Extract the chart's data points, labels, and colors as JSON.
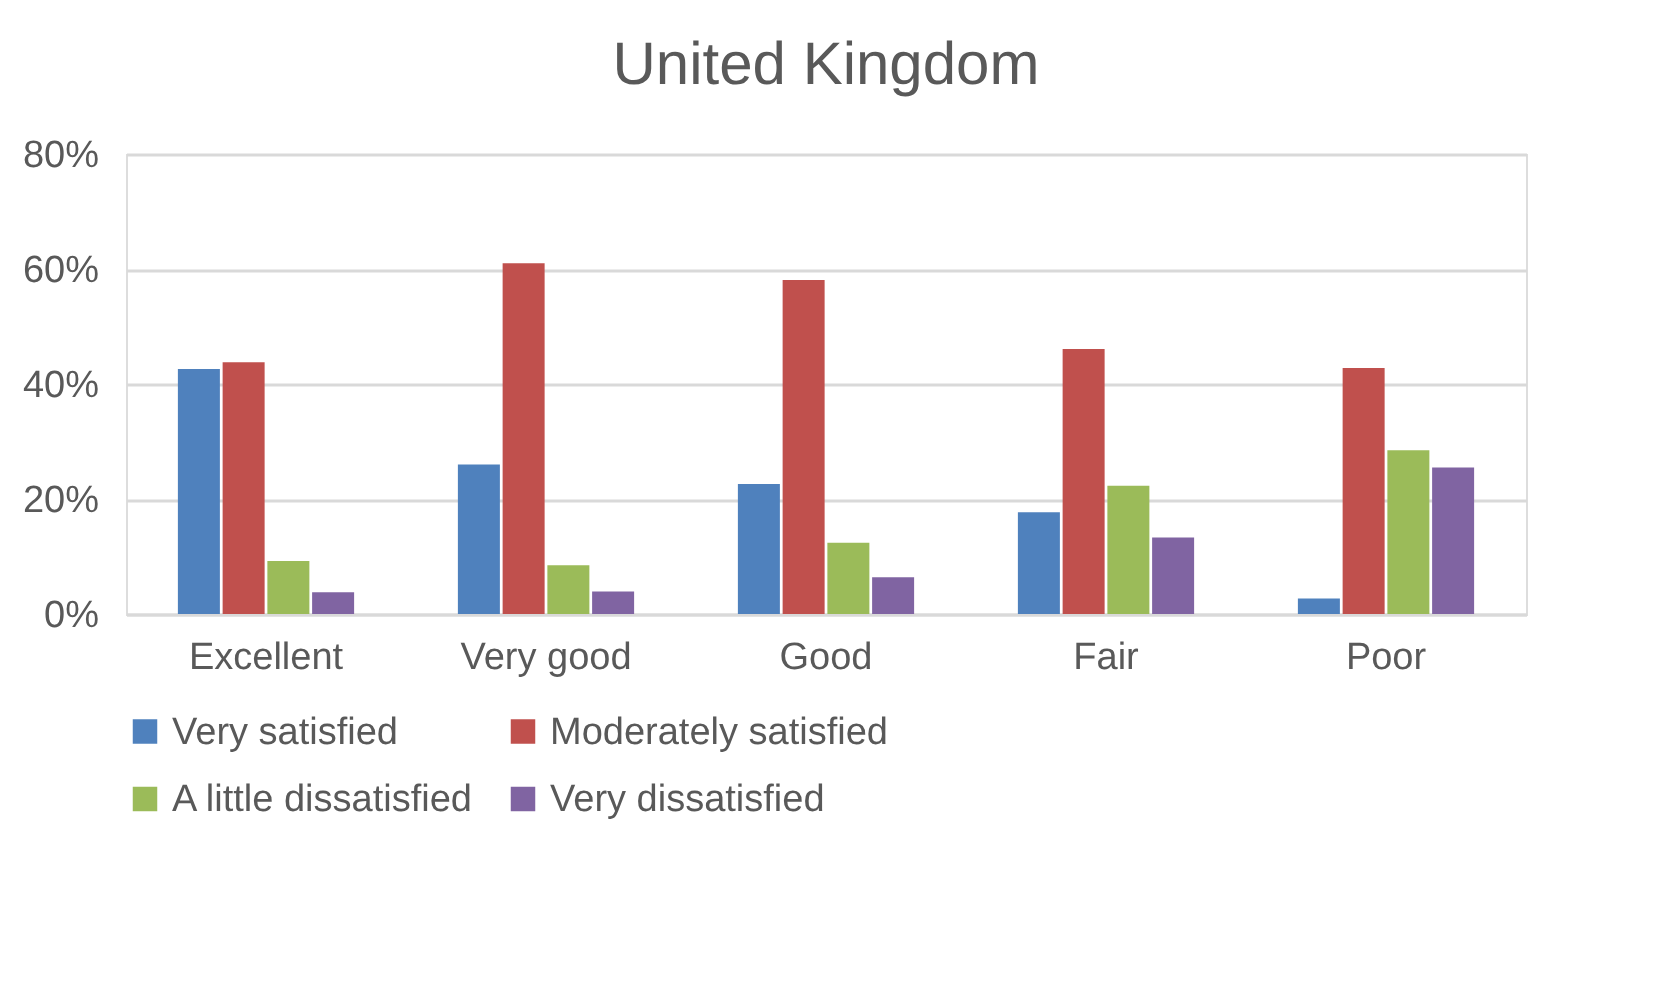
{
  "chart_data": {
    "type": "bar",
    "title": "United Kingdom",
    "categories": [
      "Excellent",
      "Very good",
      "Good",
      "Fair",
      "Poor"
    ],
    "series": [
      {
        "name": "Very satisfied",
        "color": "#4f81bd",
        "values": [
          42.6,
          26.0,
          22.6,
          17.7,
          2.7
        ]
      },
      {
        "name": "Moderately satisfied",
        "color": "#c0504d",
        "values": [
          43.8,
          61.0,
          58.1,
          46.1,
          42.8
        ]
      },
      {
        "name": "A little dissatisfied",
        "color": "#9bbb59",
        "values": [
          9.2,
          8.5,
          12.4,
          22.3,
          28.5
        ]
      },
      {
        "name": "Very dissatisfied",
        "color": "#8064a2",
        "values": [
          3.8,
          3.9,
          6.4,
          13.3,
          25.5
        ]
      }
    ],
    "ylim": [
      0,
      80
    ],
    "yticks": [
      {
        "value": 0,
        "label": "0%"
      },
      {
        "value": 20,
        "label": "20%"
      },
      {
        "value": 40,
        "label": "40%"
      },
      {
        "value": 60,
        "label": "60%"
      },
      {
        "value": 80,
        "label": "80%"
      }
    ],
    "grid": "y",
    "legend": "bottom"
  }
}
